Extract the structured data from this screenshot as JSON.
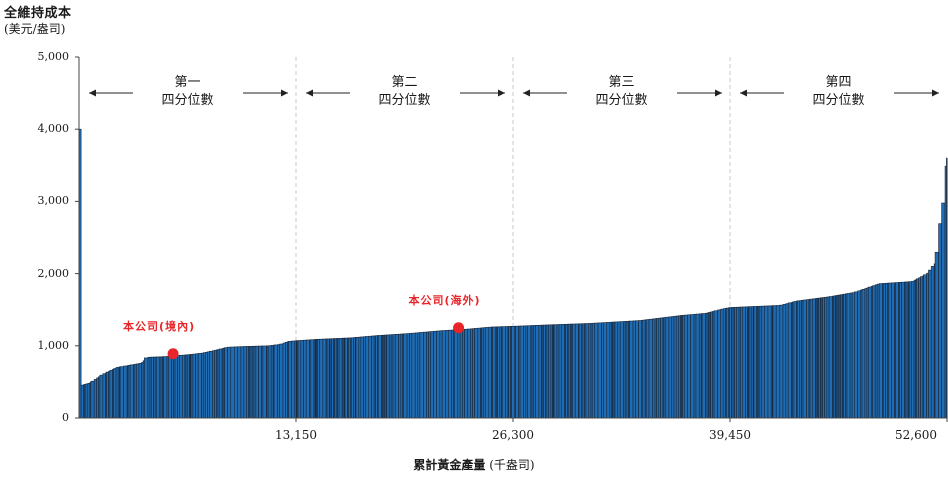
{
  "chart_data": {
    "type": "bar",
    "ylabel": "全維持成本",
    "yunit": "(美元/盎司)",
    "xlabel_bold": "累計黃金產量",
    "xlabel_unit": "(千盎司)",
    "ylim": [
      0,
      5000
    ],
    "xlim": [
      0,
      52600
    ],
    "yticks": [
      "0",
      "1,000",
      "2,000",
      "3,000",
      "4,000",
      "5,000"
    ],
    "xticks": [
      {
        "value": 13150,
        "label": "13,150"
      },
      {
        "value": 26300,
        "label": "26,300"
      },
      {
        "value": 39450,
        "label": "39,450"
      },
      {
        "value": 52600,
        "label": "52,600"
      }
    ],
    "quartiles": [
      {
        "name": "第一",
        "sub": "四分位數",
        "from": 0,
        "to": 13150
      },
      {
        "name": "第二",
        "sub": "四分位數",
        "from": 13150,
        "to": 26300
      },
      {
        "name": "第三",
        "sub": "四分位數",
        "from": 26300,
        "to": 39450
      },
      {
        "name": "第四",
        "sub": "四分位數",
        "from": 39450,
        "to": 52600
      }
    ],
    "curve": [
      [
        0,
        4000
      ],
      [
        80,
        4000
      ],
      [
        100,
        450
      ],
      [
        600,
        480
      ],
      [
        900,
        520
      ],
      [
        1400,
        600
      ],
      [
        2300,
        700
      ],
      [
        3800,
        760
      ],
      [
        4100,
        840
      ],
      [
        5200,
        850
      ],
      [
        6800,
        880
      ],
      [
        7500,
        900
      ],
      [
        8300,
        940
      ],
      [
        9000,
        980
      ],
      [
        10000,
        990
      ],
      [
        11500,
        1000
      ],
      [
        12200,
        1020
      ],
      [
        12700,
        1060
      ],
      [
        13150,
        1070
      ],
      [
        14500,
        1090
      ],
      [
        16500,
        1110
      ],
      [
        18000,
        1140
      ],
      [
        20000,
        1170
      ],
      [
        22000,
        1210
      ],
      [
        23500,
        1230
      ],
      [
        25000,
        1260
      ],
      [
        26300,
        1270
      ],
      [
        28500,
        1290
      ],
      [
        31000,
        1310
      ],
      [
        34000,
        1350
      ],
      [
        36500,
        1420
      ],
      [
        38000,
        1450
      ],
      [
        39000,
        1510
      ],
      [
        39450,
        1530
      ],
      [
        42500,
        1560
      ],
      [
        43500,
        1620
      ],
      [
        45500,
        1680
      ],
      [
        47000,
        1740
      ],
      [
        48500,
        1860
      ],
      [
        50500,
        1890
      ],
      [
        51400,
        2000
      ],
      [
        51900,
        2150
      ],
      [
        52100,
        2500
      ],
      [
        52250,
        2850
      ],
      [
        52400,
        3000
      ],
      [
        52550,
        3600
      ],
      [
        52600,
        3600
      ]
    ],
    "markers": [
      {
        "label": "本公司(境內)",
        "x": 5700,
        "y": 890
      },
      {
        "label": "本公司(海外)",
        "x": 23000,
        "y": 1250
      }
    ],
    "colors": {
      "bar": "#1f6db5",
      "edge": "#1b2433",
      "marker": "#e8262a",
      "divider": "#c8c8c8"
    }
  }
}
